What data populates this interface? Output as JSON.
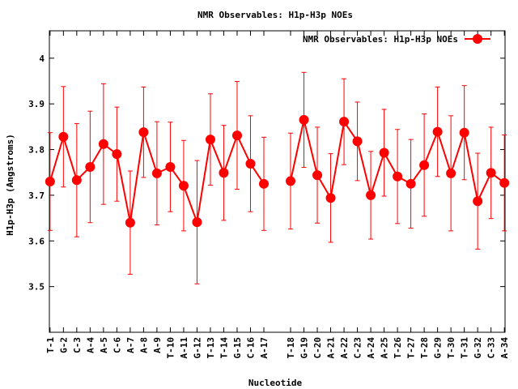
{
  "chart_data": {
    "type": "line",
    "title": "NMR Observables: H1p-H3p NOEs",
    "xlabel": "Nucleotide",
    "ylabel": "H1p-H3p (Angstroms)",
    "ylim": [
      3.4,
      4.06
    ],
    "yticks": [
      3.5,
      3.6,
      3.7,
      3.8,
      3.9,
      4
    ],
    "ytick_labels": [
      "3.5",
      "3.6",
      "3.7",
      "3.8",
      "3.9",
      "4"
    ],
    "grid": false,
    "legend": "top-right",
    "categories": [
      "T-1",
      "G-2",
      "C-3",
      "A-4",
      "A-5",
      "C-6",
      "A-7",
      "A-8",
      "A-9",
      "T-10",
      "A-11",
      "G-12",
      "T-13",
      "T-14",
      "G-15",
      "C-16",
      "A-17",
      "T-18",
      "G-19",
      "C-20",
      "A-21",
      "A-22",
      "C-23",
      "A-24",
      "A-25",
      "T-26",
      "T-27",
      "T-28",
      "G-29",
      "T-30",
      "T-31",
      "G-32",
      "C-33",
      "A-34"
    ],
    "x": [
      1,
      2,
      3,
      4,
      5,
      6,
      7,
      8,
      9,
      10,
      11,
      12,
      13,
      14,
      15,
      16,
      17,
      19,
      20,
      21,
      22,
      23,
      24,
      25,
      26,
      27,
      28,
      29,
      30,
      31,
      32,
      33,
      34,
      35
    ],
    "xlim": [
      0.95,
      35.05
    ],
    "series": [
      {
        "name": "NMR Observables: H1p-H3p NOEs",
        "color": "#ff0000",
        "values": [
          3.73,
          3.828,
          3.733,
          3.762,
          3.812,
          3.79,
          3.64,
          3.838,
          3.748,
          3.762,
          3.721,
          3.641,
          3.822,
          3.749,
          3.831,
          3.769,
          3.725,
          3.731,
          3.865,
          3.744,
          3.694,
          3.861,
          3.818,
          3.7,
          3.793,
          3.741,
          3.725,
          3.766,
          3.839,
          3.748,
          3.837,
          3.687,
          3.749,
          3.727
        ],
        "error": [
          0.107,
          0.11,
          0.124,
          0.122,
          0.132,
          0.103,
          0.113,
          0.099,
          0.113,
          0.098,
          0.099,
          0.135,
          0.1,
          0.104,
          0.118,
          0.105,
          0.102,
          0.105,
          0.104,
          0.105,
          0.097,
          0.094,
          0.086,
          0.096,
          0.095,
          0.103,
          0.097,
          0.112,
          0.098,
          0.126,
          0.103,
          0.105,
          0.1,
          0.105
        ]
      }
    ]
  }
}
